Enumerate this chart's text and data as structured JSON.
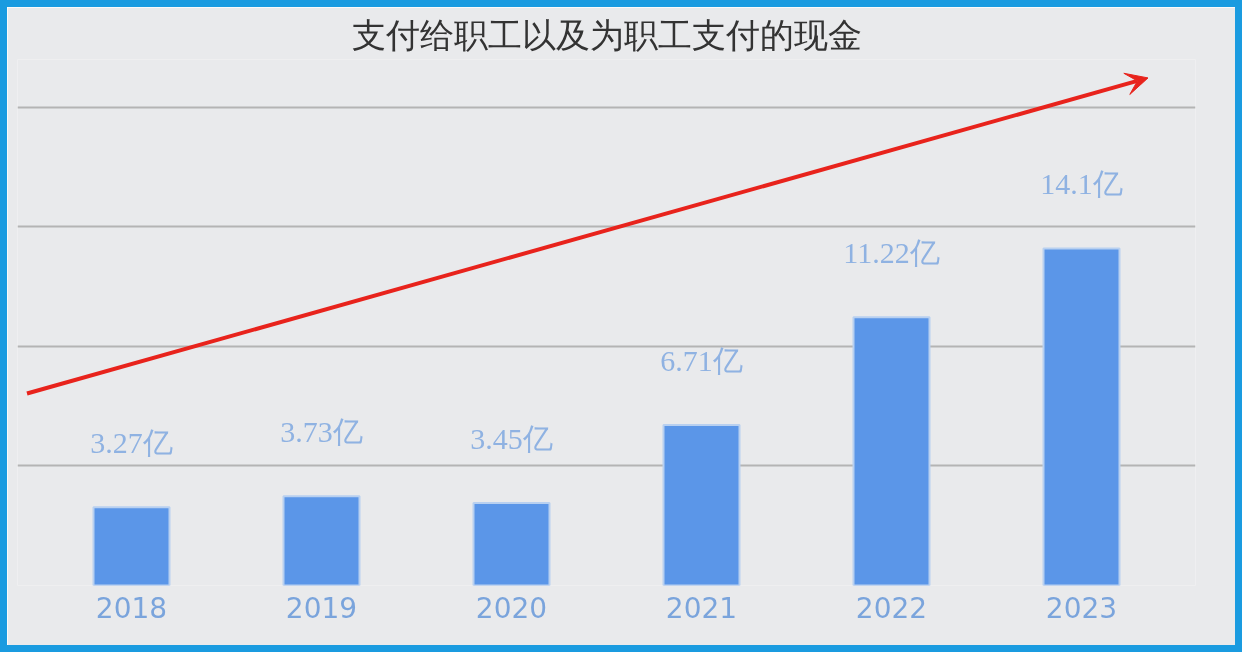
{
  "chart_data": {
    "type": "bar",
    "title": "支付给职工以及为职工支付的现金",
    "categories": [
      "2018",
      "2019",
      "2020",
      "2021",
      "2022",
      "2023"
    ],
    "values": [
      3.27,
      3.73,
      3.45,
      6.71,
      11.22,
      14.1
    ],
    "value_labels": [
      "3.27亿",
      "3.73亿",
      "3.45亿",
      "6.71亿",
      "11.22亿",
      "14.1亿"
    ],
    "color": "#5b96e8",
    "ylim": [
      0,
      22
    ],
    "yticks": [
      {
        "value": 0,
        "label": null
      },
      {
        "value": 5,
        "label": null
      },
      {
        "value": 10,
        "label": null
      },
      {
        "value": 15,
        "label": null
      },
      {
        "value": 20,
        "label": null
      }
    ],
    "tick_labels": "x",
    "grid": "y"
  }
}
